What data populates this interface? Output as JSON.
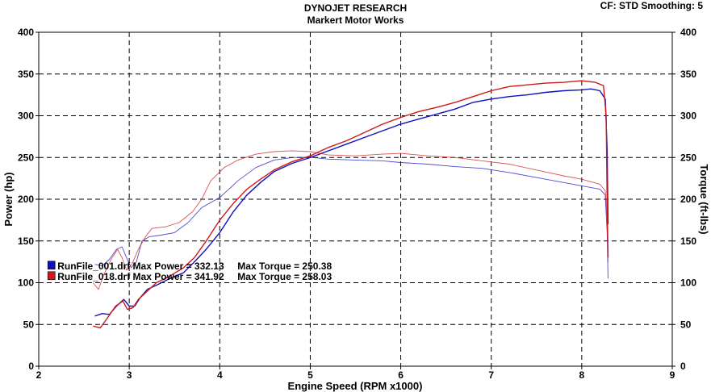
{
  "header": {
    "title": "DYNOJET RESEARCH",
    "subtitle": "Markert Motor Works",
    "settings": "CF: STD  Smoothing: 5"
  },
  "chart_data": {
    "type": "line",
    "title": "DYNOJET RESEARCH",
    "subtitle": "Markert Motor Works",
    "xlabel": "Engine Speed (RPM x1000)",
    "ylabel_left": "Power (hp)",
    "ylabel_right": "Torque (ft-lbs)",
    "xlim": [
      2,
      9
    ],
    "ylim": [
      0,
      400
    ],
    "x_ticks": [
      2,
      3,
      4,
      5,
      6,
      7,
      8,
      9
    ],
    "y_ticks": [
      0,
      50,
      100,
      150,
      200,
      250,
      300,
      350,
      400
    ],
    "grid": true,
    "grid_style": "dashed",
    "legend": [
      {
        "text": "RunFile_001.drf Max Power = 332.13     Max Torque = 250.38",
        "color": "#1010c0"
      },
      {
        "text": "RunFile_018.drf Max Power = 341.92     Max Torque = 258.03",
        "color": "#d01818"
      }
    ],
    "series": [
      {
        "name": "RunFile_001.drf",
        "measure": "power",
        "color": "#1010c0",
        "points": [
          [
            2.62,
            60
          ],
          [
            2.7,
            63
          ],
          [
            2.78,
            62
          ],
          [
            2.86,
            72
          ],
          [
            2.94,
            80
          ],
          [
            3.0,
            72
          ],
          [
            3.06,
            72
          ],
          [
            3.12,
            82
          ],
          [
            3.2,
            92
          ],
          [
            3.3,
            97
          ],
          [
            3.45,
            105
          ],
          [
            3.6,
            112
          ],
          [
            3.72,
            125
          ],
          [
            3.85,
            140
          ],
          [
            4.0,
            160
          ],
          [
            4.15,
            185
          ],
          [
            4.3,
            205
          ],
          [
            4.45,
            220
          ],
          [
            4.6,
            233
          ],
          [
            4.8,
            243
          ],
          [
            5.0,
            250
          ],
          [
            5.2,
            258
          ],
          [
            5.4,
            266
          ],
          [
            5.6,
            274
          ],
          [
            5.8,
            282
          ],
          [
            6.0,
            290
          ],
          [
            6.2,
            296
          ],
          [
            6.4,
            302
          ],
          [
            6.6,
            308
          ],
          [
            6.8,
            316
          ],
          [
            7.0,
            320
          ],
          [
            7.2,
            323
          ],
          [
            7.4,
            325
          ],
          [
            7.6,
            328
          ],
          [
            7.8,
            330
          ],
          [
            8.0,
            331
          ],
          [
            8.1,
            332.13
          ],
          [
            8.2,
            330
          ],
          [
            8.26,
            320
          ],
          [
            8.28,
            260
          ],
          [
            8.29,
            170
          ]
        ]
      },
      {
        "name": "RunFile_001.drf",
        "measure": "torque",
        "color": "#1010c0",
        "points": [
          [
            2.62,
            122
          ],
          [
            2.7,
            120
          ],
          [
            2.78,
            128
          ],
          [
            2.86,
            140
          ],
          [
            2.92,
            143
          ],
          [
            2.97,
            130
          ],
          [
            3.02,
            118
          ],
          [
            3.08,
            125
          ],
          [
            3.14,
            150
          ],
          [
            3.22,
            155
          ],
          [
            3.35,
            157
          ],
          [
            3.5,
            160
          ],
          [
            3.65,
            172
          ],
          [
            3.8,
            190
          ],
          [
            4.0,
            202
          ],
          [
            4.2,
            222
          ],
          [
            4.4,
            238
          ],
          [
            4.6,
            247
          ],
          [
            4.8,
            250
          ],
          [
            5.0,
            250.38
          ],
          [
            5.2,
            248
          ],
          [
            5.5,
            247
          ],
          [
            5.8,
            246
          ],
          [
            6.0,
            244
          ],
          [
            6.3,
            242
          ],
          [
            6.6,
            239
          ],
          [
            6.9,
            237
          ],
          [
            7.2,
            232
          ],
          [
            7.5,
            226
          ],
          [
            7.8,
            220
          ],
          [
            8.0,
            216
          ],
          [
            8.2,
            212
          ],
          [
            8.26,
            205
          ],
          [
            8.28,
            160
          ],
          [
            8.29,
            105
          ]
        ]
      },
      {
        "name": "RunFile_018.drf",
        "measure": "power",
        "color": "#d01818",
        "points": [
          [
            2.6,
            48
          ],
          [
            2.68,
            46
          ],
          [
            2.76,
            58
          ],
          [
            2.85,
            72
          ],
          [
            2.93,
            78
          ],
          [
            2.98,
            68
          ],
          [
            3.04,
            70
          ],
          [
            3.1,
            80
          ],
          [
            3.2,
            90
          ],
          [
            3.3,
            100
          ],
          [
            3.45,
            108
          ],
          [
            3.6,
            118
          ],
          [
            3.72,
            130
          ],
          [
            3.85,
            150
          ],
          [
            4.0,
            175
          ],
          [
            4.15,
            195
          ],
          [
            4.3,
            212
          ],
          [
            4.45,
            224
          ],
          [
            4.6,
            235
          ],
          [
            4.8,
            245
          ],
          [
            5.0,
            252
          ],
          [
            5.2,
            262
          ],
          [
            5.4,
            270
          ],
          [
            5.6,
            280
          ],
          [
            5.8,
            290
          ],
          [
            6.0,
            298
          ],
          [
            6.2,
            305
          ],
          [
            6.4,
            310
          ],
          [
            6.6,
            316
          ],
          [
            6.8,
            323
          ],
          [
            7.0,
            330
          ],
          [
            7.2,
            335
          ],
          [
            7.4,
            337
          ],
          [
            7.6,
            339
          ],
          [
            7.8,
            340
          ],
          [
            8.0,
            341.92
          ],
          [
            8.15,
            340
          ],
          [
            8.24,
            336
          ],
          [
            8.27,
            300
          ],
          [
            8.28,
            200
          ],
          [
            8.29,
            130
          ]
        ]
      },
      {
        "name": "RunFile_018.drf",
        "measure": "torque",
        "color": "#d01818",
        "points": [
          [
            2.6,
            100
          ],
          [
            2.66,
            92
          ],
          [
            2.72,
            110
          ],
          [
            2.8,
            128
          ],
          [
            2.87,
            140
          ],
          [
            2.92,
            130
          ],
          [
            2.97,
            115
          ],
          [
            3.03,
            122
          ],
          [
            3.1,
            140
          ],
          [
            3.18,
            155
          ],
          [
            3.25,
            165
          ],
          [
            3.4,
            167
          ],
          [
            3.55,
            172
          ],
          [
            3.7,
            185
          ],
          [
            3.8,
            200
          ],
          [
            3.9,
            222
          ],
          [
            4.05,
            238
          ],
          [
            4.2,
            247
          ],
          [
            4.4,
            254
          ],
          [
            4.6,
            257
          ],
          [
            4.8,
            258.03
          ],
          [
            5.0,
            257
          ],
          [
            5.2,
            253
          ],
          [
            5.5,
            252
          ],
          [
            5.8,
            254
          ],
          [
            6.0,
            255
          ],
          [
            6.3,
            252
          ],
          [
            6.6,
            250
          ],
          [
            6.9,
            246
          ],
          [
            7.2,
            242
          ],
          [
            7.5,
            235
          ],
          [
            7.8,
            228
          ],
          [
            8.0,
            224
          ],
          [
            8.2,
            218
          ],
          [
            8.26,
            210
          ],
          [
            8.28,
            180
          ],
          [
            8.29,
            125
          ]
        ]
      }
    ]
  }
}
